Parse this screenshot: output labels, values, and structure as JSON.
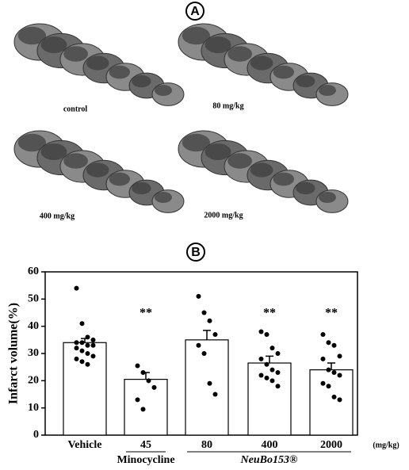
{
  "panel_a": {
    "label": "A",
    "captions": [
      "control",
      "80 mg/kg",
      "400 mg/kg",
      "2000 mg/kg"
    ]
  },
  "chart_data": {
    "type": "bar",
    "panel_label": "B",
    "ylabel": "Infarct volume(%)",
    "categories": [
      "Vehicle",
      "45",
      "80",
      "400",
      "2000"
    ],
    "unit": "(mg/kg)",
    "groups": [
      {
        "name": "Minocycline",
        "categories": [
          "45"
        ]
      },
      {
        "name": "NeuBo153®",
        "categories": [
          "80",
          "400",
          "2000"
        ]
      }
    ],
    "values": [
      34,
      20.5,
      35,
      26.5,
      24
    ],
    "errors": [
      1.5,
      2.5,
      3.5,
      2.5,
      2.5
    ],
    "significance": [
      null,
      "**",
      null,
      "**",
      "**"
    ],
    "points": [
      [
        54,
        41,
        36,
        35,
        34,
        34,
        33,
        33,
        32,
        31,
        30,
        29,
        28,
        27,
        26
      ],
      [
        25.5,
        23,
        20,
        17.5,
        13,
        9.5
      ],
      [
        51,
        45,
        42,
        37,
        33,
        30,
        19,
        15
      ],
      [
        38,
        37,
        32,
        30,
        28,
        26,
        24,
        23,
        22,
        21,
        20,
        18
      ],
      [
        37,
        34,
        33,
        29,
        28,
        24,
        23,
        22,
        19,
        18,
        14,
        13
      ]
    ],
    "color": "#ffffff",
    "ylim": [
      0,
      60
    ],
    "yticks": [
      0,
      10,
      20,
      30,
      40,
      50,
      60
    ]
  }
}
